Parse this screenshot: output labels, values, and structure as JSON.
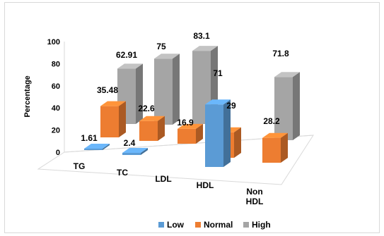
{
  "chart_data": {
    "type": "bar",
    "subtype": "3d-clustered-column",
    "categories": [
      [
        "TG"
      ],
      [
        "TC"
      ],
      [
        "LDL"
      ],
      [
        "HDL"
      ],
      [
        "Non",
        "HDL"
      ]
    ],
    "series": [
      {
        "name": "Low",
        "color": "#5b9bd5",
        "values": [
          1.61,
          2.4,
          null,
          71,
          null
        ]
      },
      {
        "name": "Normal",
        "color": "#ed7d31",
        "values": [
          35.48,
          22.6,
          16.9,
          29,
          28.2
        ]
      },
      {
        "name": "High",
        "color": "#a5a5a5",
        "values": [
          62.91,
          75,
          83.1,
          null,
          71.8
        ]
      }
    ],
    "value_labels": {
      "Low": [
        "1.61",
        "2.4",
        null,
        "71",
        null
      ],
      "Normal": [
        "35.48",
        "22.6",
        "16.9",
        "29",
        "28.2"
      ],
      "High": [
        "62.91",
        "75",
        "83.1",
        null,
        "71.8"
      ]
    },
    "ylabel": "Percentage",
    "ylim": [
      0,
      100
    ],
    "yticks": [
      "0",
      "20",
      "40",
      "60",
      "80",
      "100"
    ],
    "legend_position": "bottom",
    "grid": false
  }
}
